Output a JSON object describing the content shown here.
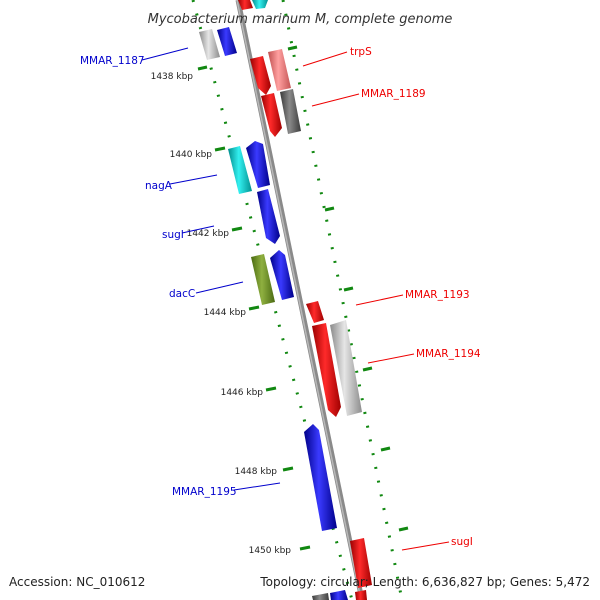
{
  "title": "Mycobacterium marinum M, complete genome",
  "accession": "Accession: NC_010612",
  "summary": "Topology: circular; Length: 6,636,827 bp; Genes: 5,472",
  "colors": {
    "forward_label": "#0000cc",
    "reverse_label": "#ee0000",
    "tick": "#118811",
    "backbone": "#888888"
  },
  "ticks": [
    "1438 kbp",
    "1440 kbp",
    "1442 kbp",
    "1444 kbp",
    "1446 kbp",
    "1448 kbp",
    "1450 kbp"
  ],
  "genes": {
    "mmar_1187": "MMAR_1187",
    "trps": "trpS",
    "mmar_1189": "MMAR_1189",
    "naga": "nagA",
    "sugi_left": "sugI",
    "dacc": "dacC",
    "mmar_1193": "MMAR_1193",
    "mmar_1194": "MMAR_1194",
    "mmar_1195": "MMAR_1195",
    "sugi_right": "sugI"
  }
}
